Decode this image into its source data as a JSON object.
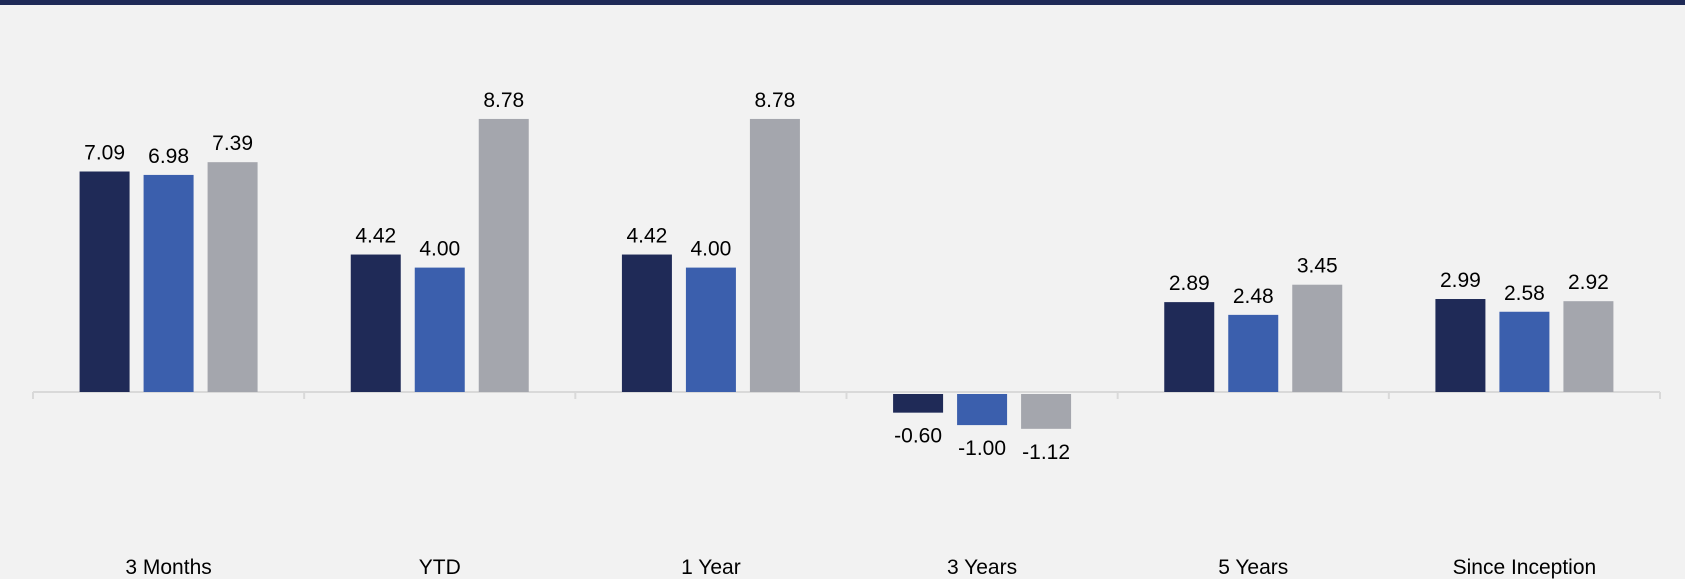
{
  "colors": {
    "top_rule": "#1f2a57",
    "background": "#f2f2f2",
    "axis": "#d9d9d9",
    "series": [
      "#1f2a57",
      "#3b5fad",
      "#a4a6ad"
    ]
  },
  "chart_data": {
    "type": "bar",
    "title": "",
    "xlabel": "",
    "ylabel": "",
    "legend": false,
    "grid": false,
    "ylim": [
      -3,
      11
    ],
    "categories": [
      "3 Months",
      "YTD",
      "1 Year",
      "3 Years",
      "5 Years",
      "Since Inception"
    ],
    "series": [
      {
        "values": [
          7.09,
          4.42,
          4.42,
          -0.6,
          2.89,
          2.99
        ],
        "labels": [
          "7.09",
          "4.42",
          "4.42",
          "-0.60",
          "2.89",
          "2.99"
        ]
      },
      {
        "values": [
          6.98,
          4.0,
          4.0,
          -1.0,
          2.48,
          2.58
        ],
        "labels": [
          "6.98",
          "4.00",
          "4.00",
          "-1.00",
          "2.48",
          "2.58"
        ]
      },
      {
        "values": [
          7.39,
          8.78,
          8.78,
          -1.12,
          3.45,
          2.92
        ],
        "labels": [
          "7.39",
          "8.78",
          "8.78",
          "-1.12",
          "3.45",
          "2.92"
        ]
      }
    ]
  }
}
